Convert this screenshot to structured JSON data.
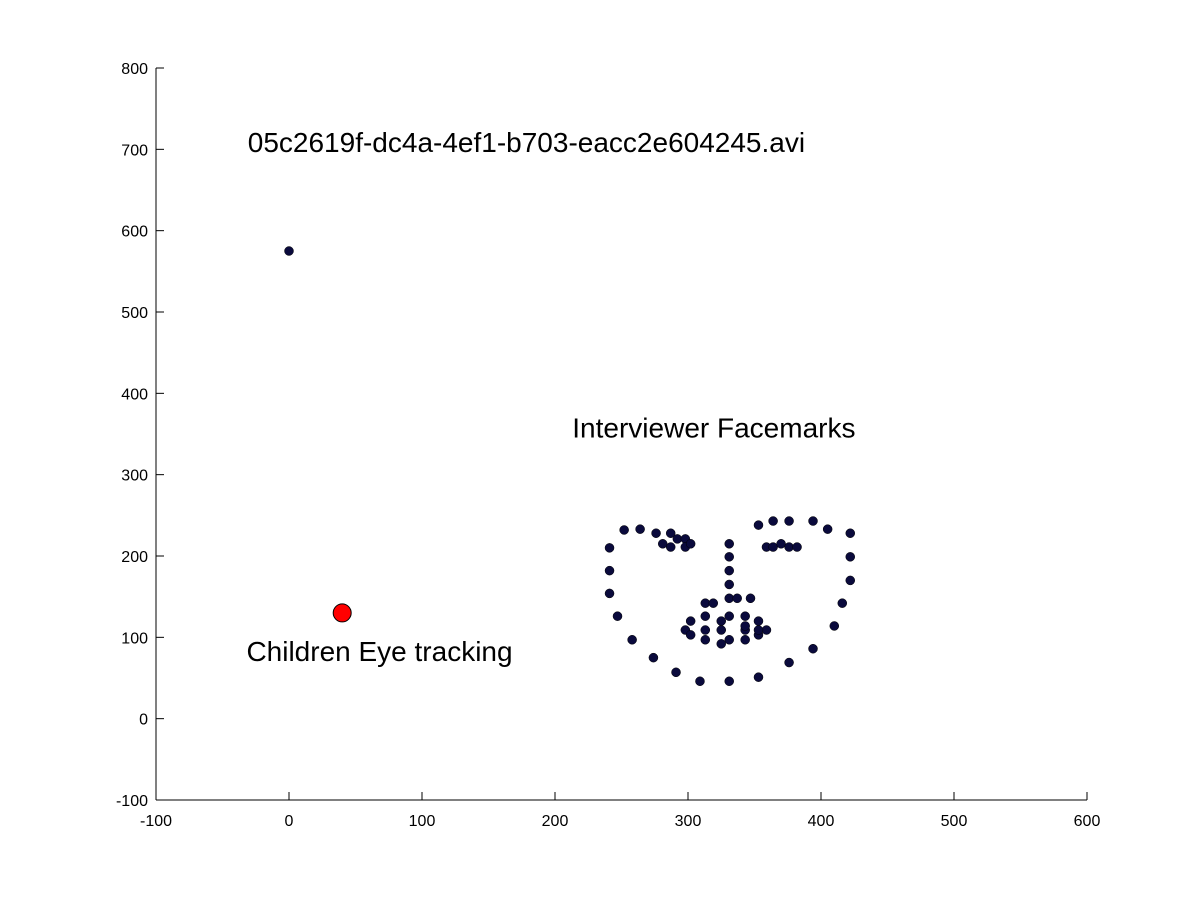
{
  "chart_data": {
    "type": "scatter",
    "title": "",
    "xlabel": "",
    "ylabel": "",
    "xlim": [
      -100,
      600
    ],
    "ylim": [
      -100,
      800
    ],
    "xticks": [
      -100,
      0,
      100,
      200,
      300,
      400,
      500,
      600
    ],
    "yticks": [
      -100,
      0,
      100,
      200,
      300,
      400,
      500,
      600,
      700,
      800
    ],
    "grid": false,
    "annotations": [
      {
        "text": "05c2619f-dc4a-4ef1-b703-eacc2e604245.avi",
        "x": -31,
        "y": 697
      },
      {
        "text": "Interviewer Facemarks",
        "x": 213,
        "y": 346
      },
      {
        "text": "Children Eye tracking",
        "x": -32,
        "y": 71
      }
    ],
    "series": [
      {
        "color": "#0a0a3c",
        "points": [
          [
            0,
            575
          ],
          [
            241,
            210
          ],
          [
            241,
            182
          ],
          [
            241,
            154
          ],
          [
            247,
            126
          ],
          [
            258,
            97
          ],
          [
            274,
            75
          ],
          [
            291,
            57
          ],
          [
            309,
            46
          ],
          [
            331,
            46
          ],
          [
            353,
            51
          ],
          [
            376,
            69
          ],
          [
            394,
            86
          ],
          [
            410,
            114
          ],
          [
            416,
            142
          ],
          [
            422,
            170
          ],
          [
            422,
            199
          ],
          [
            422,
            228
          ],
          [
            252,
            232
          ],
          [
            264,
            233
          ],
          [
            276,
            228
          ],
          [
            281,
            215
          ],
          [
            287,
            228
          ],
          [
            353,
            238
          ],
          [
            364,
            243
          ],
          [
            376,
            243
          ],
          [
            394,
            243
          ],
          [
            405,
            233
          ],
          [
            331,
            215
          ],
          [
            331,
            199
          ],
          [
            331,
            182
          ],
          [
            331,
            165
          ],
          [
            331,
            148
          ],
          [
            313,
            142
          ],
          [
            319,
            142
          ],
          [
            337,
            148
          ],
          [
            347,
            148
          ],
          [
            287,
            211
          ],
          [
            292,
            221
          ],
          [
            298,
            221
          ],
          [
            298,
            211
          ],
          [
            302,
            215
          ],
          [
            359,
            211
          ],
          [
            364,
            211
          ],
          [
            370,
            215
          ],
          [
            376,
            211
          ],
          [
            382,
            211
          ],
          [
            298,
            109
          ],
          [
            302,
            120
          ],
          [
            313,
            126
          ],
          [
            325,
            120
          ],
          [
            331,
            126
          ],
          [
            343,
            126
          ],
          [
            353,
            120
          ],
          [
            359,
            109
          ],
          [
            353,
            103
          ],
          [
            343,
            97
          ],
          [
            331,
            97
          ],
          [
            325,
            92
          ],
          [
            313,
            97
          ],
          [
            302,
            103
          ],
          [
            313,
            109
          ],
          [
            325,
            109
          ],
          [
            343,
            109
          ],
          [
            353,
            109
          ],
          [
            343,
            114
          ]
        ]
      },
      {
        "color": "#ff0000",
        "points": [
          [
            40,
            130
          ]
        ]
      }
    ]
  }
}
